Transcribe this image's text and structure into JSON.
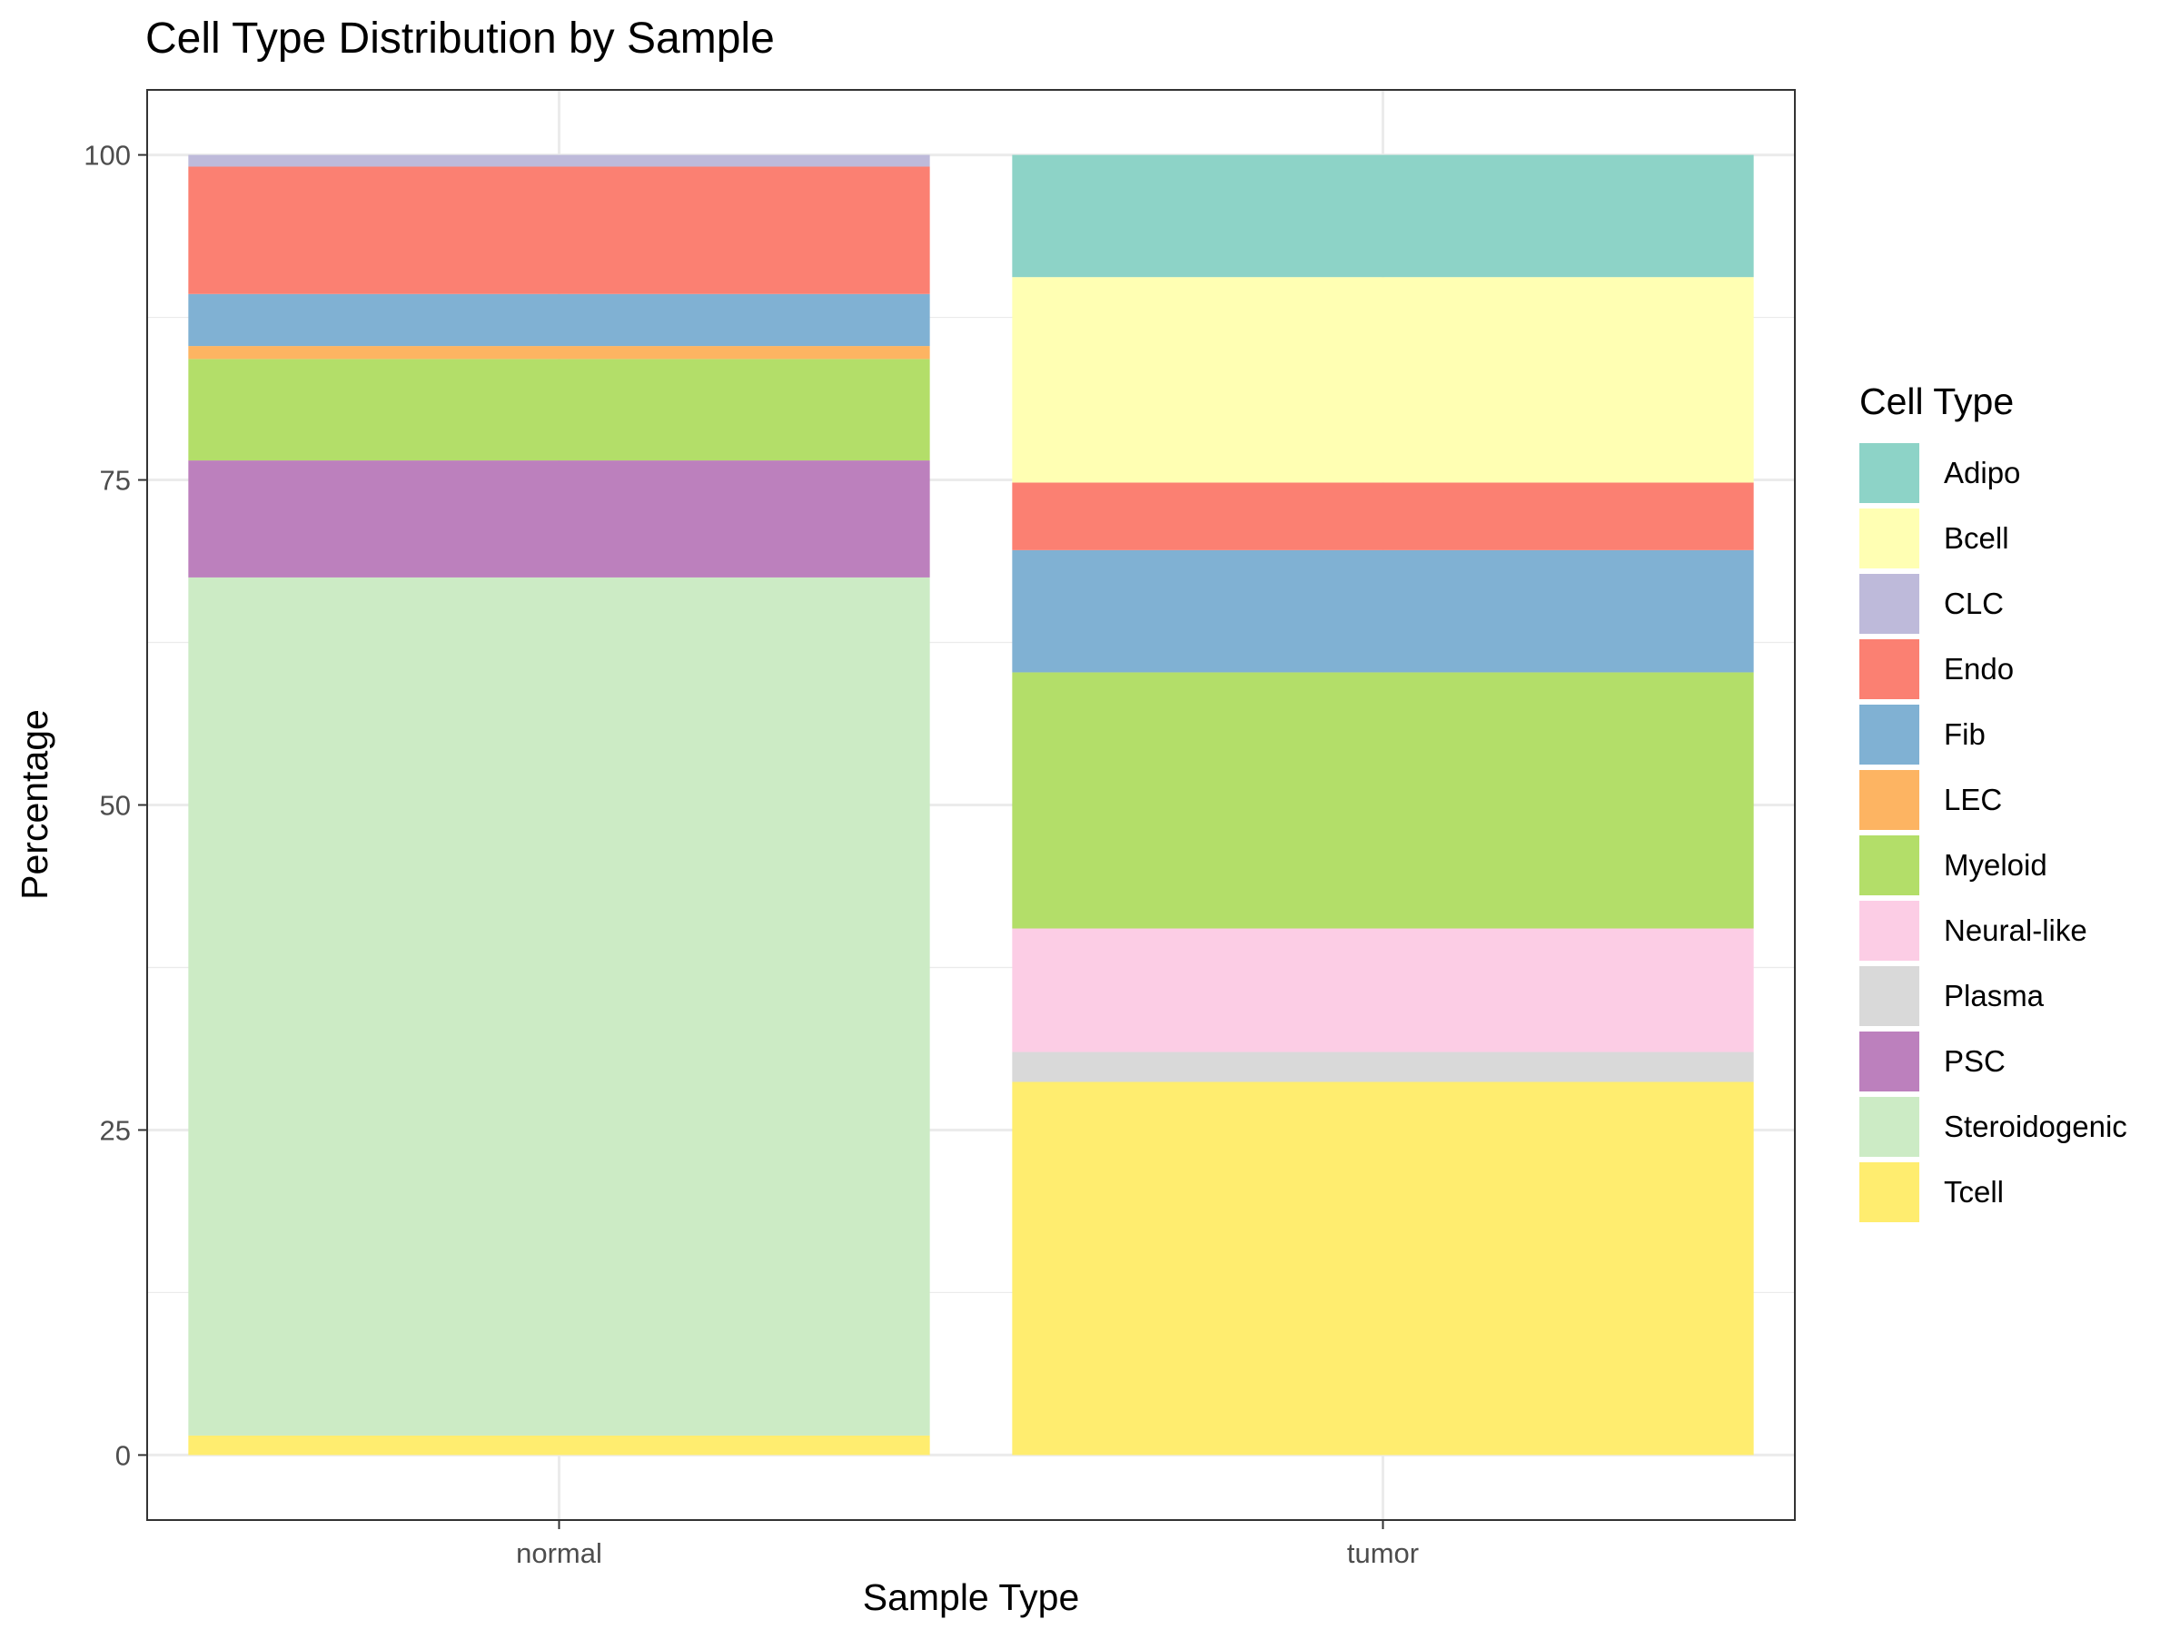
{
  "chart_data": {
    "type": "bar",
    "stacked": true,
    "title": "Cell Type Distribution by Sample",
    "xlabel": "Sample Type",
    "ylabel": "Percentage",
    "ylim": [
      -5,
      105
    ],
    "yticks": [
      0,
      25,
      50,
      75,
      100
    ],
    "grid": true,
    "legend_title": "Cell Type",
    "legend_position": "right",
    "categories": [
      "normal",
      "tumor"
    ],
    "series": [
      {
        "name": "Adipo",
        "color": "#8DD3C7",
        "values": [
          0.0,
          9.4
        ]
      },
      {
        "name": "Bcell",
        "color": "#FFFFB3",
        "values": [
          0.0,
          15.8
        ]
      },
      {
        "name": "CLC",
        "color": "#BEBADA",
        "values": [
          0.9,
          0.0
        ]
      },
      {
        "name": "Endo",
        "color": "#FB8072",
        "values": [
          9.8,
          5.2
        ]
      },
      {
        "name": "Fib",
        "color": "#80B1D3",
        "values": [
          4.0,
          9.4
        ]
      },
      {
        "name": "LEC",
        "color": "#FDB462",
        "values": [
          1.0,
          0.0
        ]
      },
      {
        "name": "Myeloid",
        "color": "#B3DE69",
        "values": [
          7.8,
          19.7
        ]
      },
      {
        "name": "Neural-like",
        "color": "#FCCDE5",
        "values": [
          0.0,
          9.5
        ]
      },
      {
        "name": "Plasma",
        "color": "#D9D9D9",
        "values": [
          0.0,
          2.3
        ]
      },
      {
        "name": "PSC",
        "color": "#BC80BD",
        "values": [
          9.0,
          0.0
        ]
      },
      {
        "name": "Steroidogenic",
        "color": "#CCEBC5",
        "values": [
          66.0,
          0.0
        ]
      },
      {
        "name": "Tcell",
        "color": "#FFED6F",
        "values": [
          1.5,
          28.7
        ]
      }
    ]
  }
}
